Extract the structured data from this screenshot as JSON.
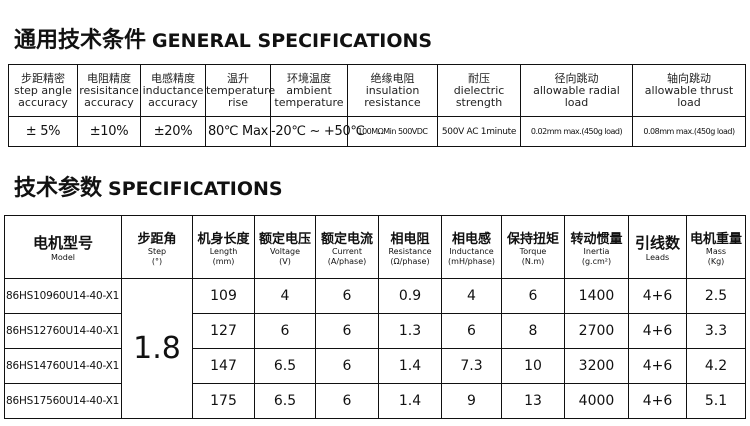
{
  "general": {
    "title_zh": "通用技术条件",
    "title_en": "GENERAL SPECIFICATIONS",
    "headers": [
      {
        "zh": "步距精密",
        "en": "step angle accuracy"
      },
      {
        "zh": "电阻精度",
        "en": "resisitance accuracy"
      },
      {
        "zh": "电感精度",
        "en": "inductance accuracy"
      },
      {
        "zh": "温升",
        "en": "temperature rise"
      },
      {
        "zh": "环境温度",
        "en": "ambient temperature"
      },
      {
        "zh": "绝缘电阻",
        "en": "insulation resistance"
      },
      {
        "zh": "耐压",
        "en": "dielectric strength"
      },
      {
        "zh": "径向跳动",
        "en": "allowable radial load"
      },
      {
        "zh": "轴向跳动",
        "en": "allowable thrust load"
      }
    ],
    "values": [
      "± 5%",
      "±10%",
      "±20%",
      "80℃ Max",
      "-20℃ ~ +50℃",
      "100MΩMin 500VDC",
      "500V AC 1minute",
      "0.02mm max.(450g load)",
      "0.08mm max.(450g load)"
    ]
  },
  "specs": {
    "title_zh": "技术参数",
    "title_en": "SPECIFICATIONS",
    "headers": [
      {
        "zh": "电机型号",
        "en": "Model"
      },
      {
        "zh": "步距角",
        "en": "Step",
        "unit": "(°)"
      },
      {
        "zh": "机身长度",
        "en": "Length",
        "unit": "(mm)"
      },
      {
        "zh": "额定电压",
        "en": "Voltage",
        "unit": "(V)"
      },
      {
        "zh": "额定电流",
        "en": "Current",
        "unit": "(A/phase)"
      },
      {
        "zh": "相电阻",
        "en": "Resistance",
        "unit": "(Ω/phase)"
      },
      {
        "zh": "相电感",
        "en": "Inductance",
        "unit": "(mH/phase)"
      },
      {
        "zh": "保持扭矩",
        "en": "Torque",
        "unit": "(N.m)"
      },
      {
        "zh": "转动惯量",
        "en": "Inertia",
        "unit": "(g.cm²)"
      },
      {
        "zh": "引线数",
        "en": "Leads"
      },
      {
        "zh": "电机重量",
        "en": "Mass",
        "unit": "(Kg)"
      }
    ],
    "step": "1.8",
    "rows": [
      [
        "86HS10960U14-40-X1",
        "109",
        "4",
        "6",
        "0.9",
        "4",
        "6",
        "1400",
        "4+6",
        "2.5"
      ],
      [
        "86HS12760U14-40-X1",
        "127",
        "6",
        "6",
        "1.3",
        "6",
        "8",
        "2700",
        "4+6",
        "3.3"
      ],
      [
        "86HS14760U14-40-X1",
        "147",
        "6.5",
        "6",
        "1.4",
        "7.3",
        "10",
        "3200",
        "4+6",
        "4.2"
      ],
      [
        "86HS17560U14-40-X1",
        "175",
        "6.5",
        "6",
        "1.4",
        "9",
        "13",
        "4000",
        "4+6",
        "5.1"
      ]
    ]
  }
}
